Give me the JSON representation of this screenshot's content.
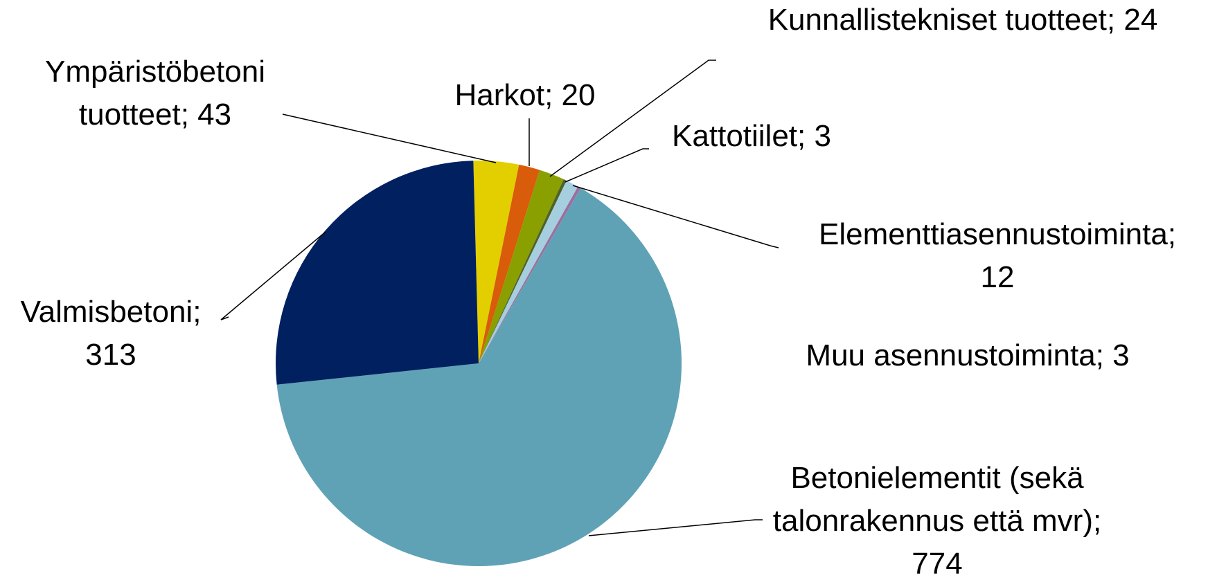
{
  "chart_data": {
    "type": "pie",
    "categories": [
      "Ympäristöbetoni tuotteet",
      "Harkot",
      "Kunnallistekniset tuotteet",
      "Kattotiilet",
      "Elementtiasennustoiminta",
      "Muu asennustoiminta",
      "Betonielementit (sekä talonrakennus että mvr)",
      "Valmisbetoni"
    ],
    "values": [
      43,
      20,
      24,
      3,
      12,
      3,
      774,
      313
    ],
    "value_labels": [
      "Ympäristöbetoni tuotteet; 43",
      "Harkot; 20",
      "Kunnallistekniset tuotteet; 24",
      "Kattotiilet; 3",
      "Elementtiasennustoiminta; 12",
      "Muu asennustoiminta; 3",
      "Betonielementit (sekä talonrakennus että mvr); 774",
      "Valmisbetoni; 313"
    ],
    "colors": [
      "#e3cf00",
      "#d85c0a",
      "#8a9f00",
      "#4f6228",
      "#a5cfdf",
      "#9b6fa0",
      "#5fa2b5",
      "#002060"
    ]
  }
}
